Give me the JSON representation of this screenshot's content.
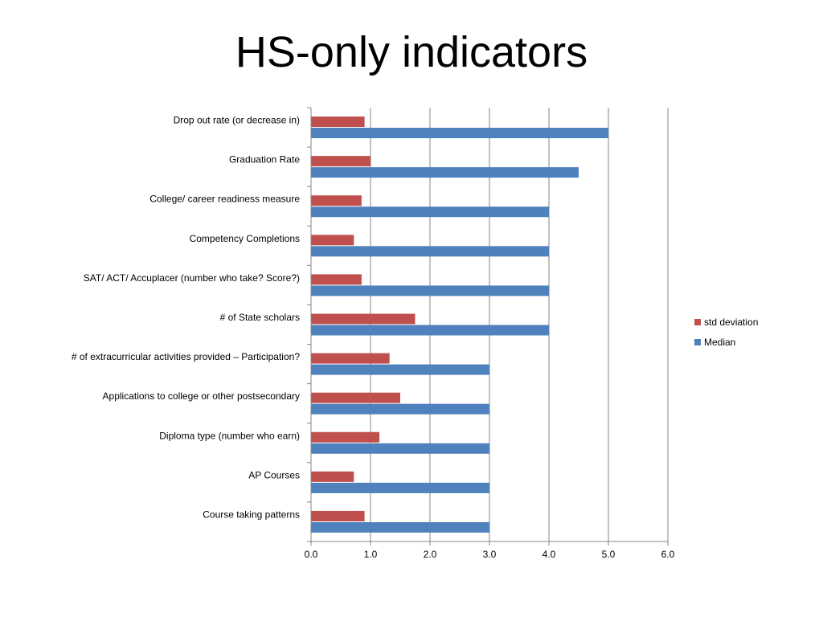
{
  "title": "HS-only indicators",
  "chart_data": {
    "type": "bar",
    "orientation": "horizontal",
    "categories": [
      "Drop out rate (or decrease in)",
      "Graduation Rate",
      "College/ career readiness measure",
      "Competency Completions",
      "SAT/ ACT/ Accuplacer (number who take? Score?)",
      "# of State scholars",
      "# of extracurricular activities provided – Participation?",
      "Applications to college or other postsecondary",
      "Diploma type (number who earn)",
      "AP Courses",
      "Course taking patterns"
    ],
    "series": [
      {
        "name": "std deviation",
        "color": "#c0504d",
        "values": [
          0.9,
          1.0,
          0.85,
          0.72,
          0.85,
          1.75,
          1.32,
          1.5,
          1.15,
          0.72,
          0.9
        ]
      },
      {
        "name": "Median",
        "color": "#4f81bd",
        "values": [
          5.0,
          4.5,
          4.0,
          4.0,
          4.0,
          4.0,
          3.0,
          3.0,
          3.0,
          3.0,
          3.0
        ]
      }
    ],
    "xlim": [
      0,
      6
    ],
    "xticks": [
      "0.0",
      "1.0",
      "2.0",
      "3.0",
      "4.0",
      "5.0",
      "6.0"
    ],
    "grid": "vertical",
    "legend_position": "right"
  }
}
